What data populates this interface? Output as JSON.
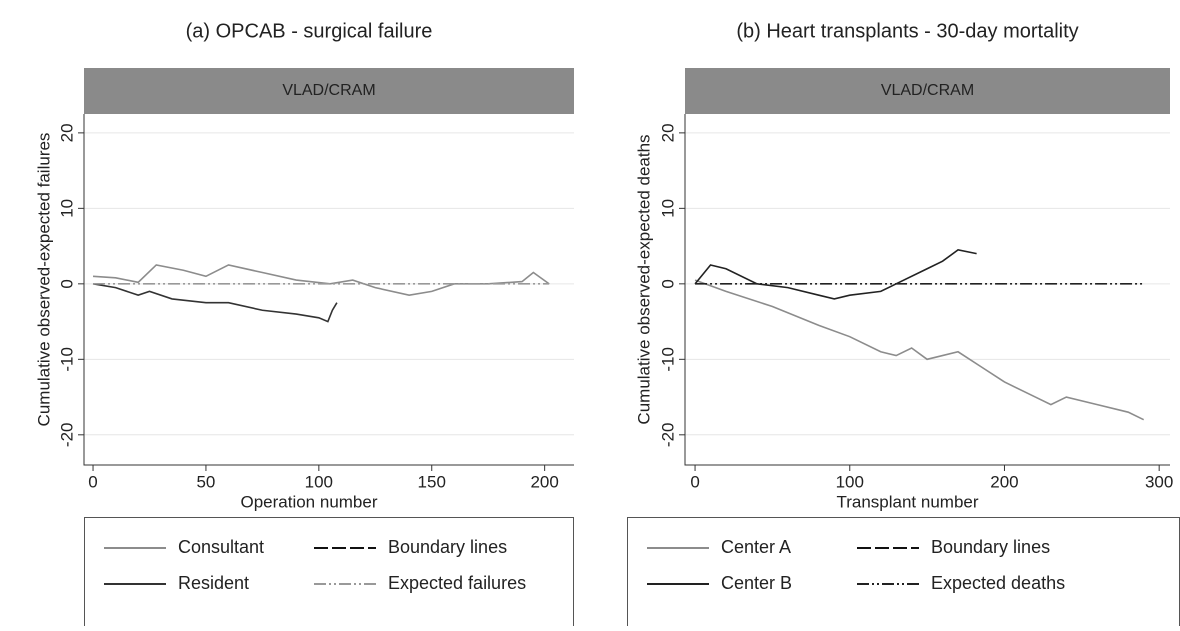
{
  "chart_data": [
    {
      "type": "line",
      "title": "(a)  OPCAB - surgical failure",
      "strip": "VLAD/CRAM",
      "xlabel": "Operation number",
      "ylabel": "Cumulative observed-expected failures",
      "xlim": [
        -4,
        213
      ],
      "ylim": [
        -24,
        22.5
      ],
      "xticks": [
        0,
        50,
        100,
        150,
        200
      ],
      "yticks": [
        -20,
        -10,
        0,
        10,
        20
      ],
      "grid": true,
      "series": [
        {
          "name": "Consultant",
          "color": "#8c8c8c",
          "dash": "none",
          "x": [
            0,
            10,
            20,
            28,
            40,
            50,
            60,
            75,
            90,
            105,
            115,
            125,
            140,
            150,
            160,
            175,
            190,
            195,
            202
          ],
          "values": [
            1,
            0.8,
            0.2,
            2.5,
            1.8,
            1,
            2.5,
            1.5,
            0.5,
            0,
            0.5,
            -0.5,
            -1.5,
            -1,
            0,
            0,
            0.3,
            1.5,
            0
          ]
        },
        {
          "name": "Resident",
          "color": "#333333",
          "dash": "none",
          "x": [
            0,
            10,
            20,
            25,
            35,
            50,
            60,
            75,
            90,
            100,
            104,
            106,
            108
          ],
          "values": [
            0,
            -0.5,
            -1.5,
            -1,
            -2,
            -2.5,
            -2.5,
            -3.5,
            -4,
            -4.5,
            -5,
            -3.5,
            -2.5
          ]
        },
        {
          "name": "Boundary lines",
          "color": "#111111",
          "dash": "14 4"
        },
        {
          "name": "Expected failures",
          "color": "#999999",
          "dash": "12 3 2 3 2 3",
          "x": [
            0,
            202
          ],
          "values": [
            0,
            0
          ]
        }
      ]
    },
    {
      "type": "line",
      "title": "(b) Heart transplants - 30-day mortality",
      "strip": "VLAD/CRAM",
      "xlabel": "Transplant number",
      "ylabel": "Cumulative observed-expected deaths",
      "xlim": [
        -6.5,
        307
      ],
      "ylim": [
        -24,
        22.5
      ],
      "xticks": [
        0,
        100,
        200,
        300
      ],
      "yticks": [
        -20,
        -10,
        0,
        10,
        20
      ],
      "grid": true,
      "series": [
        {
          "name": "Center A",
          "color": "#8c8c8c",
          "dash": "none",
          "x": [
            0,
            20,
            50,
            80,
            100,
            120,
            130,
            140,
            150,
            170,
            185,
            200,
            220,
            230,
            240,
            260,
            280,
            290
          ],
          "values": [
            0.5,
            -1,
            -3,
            -5.5,
            -7,
            -9,
            -9.5,
            -8.5,
            -10,
            -9,
            -11,
            -13,
            -15,
            -16,
            -15,
            -16,
            -17,
            -18
          ]
        },
        {
          "name": "Center B",
          "color": "#222222",
          "dash": "none",
          "x": [
            0,
            10,
            20,
            40,
            60,
            80,
            90,
            100,
            120,
            130,
            150,
            160,
            170,
            182
          ],
          "values": [
            0,
            2.5,
            2,
            0,
            -0.5,
            -1.5,
            -2,
            -1.5,
            -1,
            0,
            2,
            3,
            4.5,
            4
          ]
        },
        {
          "name": "Boundary lines",
          "color": "#111111",
          "dash": "14 4"
        },
        {
          "name": "Expected deaths",
          "color": "#222222",
          "dash": "12 3 2 3 2 3",
          "x": [
            0,
            290
          ],
          "values": [
            0,
            0
          ]
        }
      ]
    }
  ]
}
